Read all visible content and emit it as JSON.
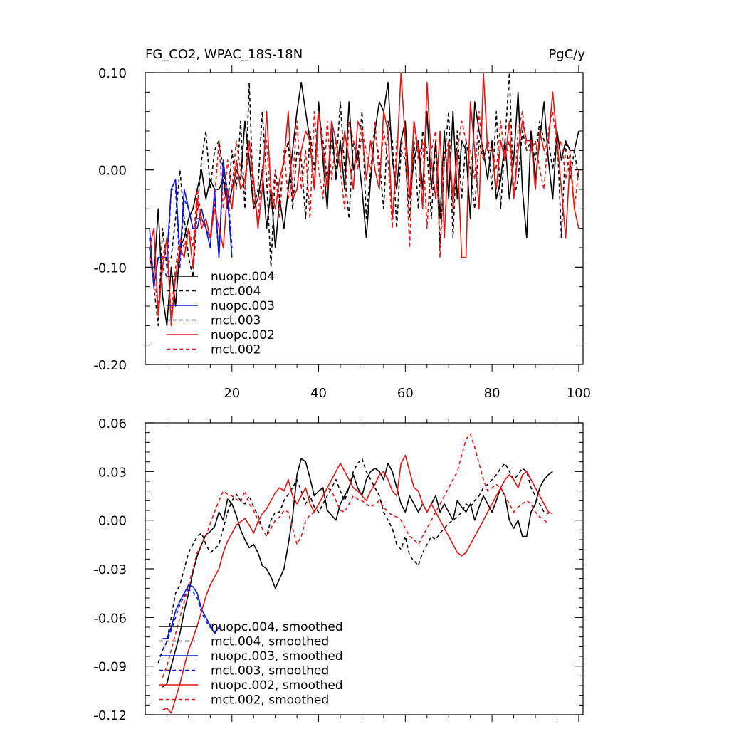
{
  "chart_data": [
    {
      "type": "line",
      "title": "FG_CO2, WPAC_18S-18N",
      "units": "PgC/y",
      "xlabel": "",
      "ylabel": "",
      "xlim": [
        0,
        101
      ],
      "ylim": [
        -0.2,
        0.1
      ],
      "xticks": [
        20,
        40,
        60,
        80,
        100
      ],
      "xtick_labels": [
        "20",
        "40",
        "60",
        "80",
        "100"
      ],
      "yticks": [
        0.1,
        0.0,
        -0.1,
        -0.2
      ],
      "ytick_labels": [
        "0.10",
        "0.00",
        "-0.10",
        "-0.20"
      ],
      "legend_position": "bottom-left",
      "series": [
        {
          "name": "nuopc.004",
          "color": "#000000",
          "dash": "solid",
          "x_start": 1,
          "values": [
            -0.09,
            -0.11,
            -0.04,
            -0.13,
            -0.16,
            -0.1,
            -0.14,
            -0.08,
            -0.07,
            -0.05,
            -0.04,
            -0.02,
            0.0,
            -0.03,
            -0.01,
            -0.02,
            -0.02,
            -0.01,
            -0.04,
            -0.02,
            0.0,
            -0.01,
            0.05,
            0.01,
            -0.04,
            -0.03,
            0.0,
            -0.06,
            -0.02,
            -0.08,
            -0.03,
            -0.06,
            -0.02,
            0.02,
            0.06,
            0.09,
            0.06,
            0.03,
            -0.02,
            0.07,
            0.01,
            -0.04,
            0.05,
            -0.01,
            0.03,
            -0.02,
            0.07,
            0.0,
            0.02,
            -0.02,
            -0.07,
            -0.01,
            0.04,
            0.07,
            0.06,
            0.09,
            0.01,
            -0.02,
            0.03,
            0.05,
            -0.03,
            0.01,
            0.03,
            -0.02,
            0.06,
            -0.02,
            0.03,
            -0.05,
            0.04,
            -0.03,
            0.06,
            -0.03,
            0.03,
            0.02,
            -0.05,
            0.07,
            0.04,
            0.02,
            -0.01,
            0.03,
            -0.03,
            -0.01,
            0.03,
            -0.03,
            0.01,
            0.08,
            -0.02,
            -0.07,
            0.04,
            -0.01,
            0.03,
            0.07,
            0.01,
            -0.03,
            0.04,
            0.01,
            0.03,
            0.02,
            0.02,
            0.04
          ]
        },
        {
          "name": "mct.004",
          "color": "#000000",
          "dash": "dashed",
          "x_start": 1,
          "values": [
            -0.08,
            -0.12,
            -0.16,
            -0.06,
            -0.1,
            -0.09,
            -0.05,
            0.0,
            -0.05,
            -0.09,
            -0.11,
            -0.04,
            0.01,
            0.04,
            -0.02,
            0.02,
            0.03,
            0.0,
            -0.04,
            0.02,
            -0.02,
            0.05,
            -0.04,
            0.09,
            -0.04,
            -0.02,
            0.06,
            -0.01,
            -0.1,
            0.0,
            -0.03,
            0.01,
            0.03,
            -0.04,
            0.02,
            0.01,
            -0.05,
            0.04,
            0.0,
            0.06,
            0.03,
            -0.01,
            0.03,
            0.0,
            0.07,
            0.0,
            -0.05,
            0.03,
            0.01,
            0.06,
            -0.05,
            0.0,
            0.04,
            0.01,
            -0.04,
            0.05,
            0.03,
            -0.06,
            0.02,
            0.01,
            -0.05,
            0.03,
            -0.04,
            0.04,
            0.02,
            -0.05,
            0.03,
            -0.08,
            0.01,
            0.06,
            -0.07,
            0.04,
            -0.03,
            0.03,
            0.0,
            -0.04,
            0.03,
            0.01,
            0.03,
            -0.02,
            0.06,
            -0.04,
            0.03,
            0.1,
            -0.03,
            -0.01,
            0.04,
            0.02,
            0.03,
            0.01,
            0.05,
            0.03,
            0.03,
            0.0,
            0.04,
            -0.07,
            0.03,
            -0.01,
            0.02,
            -0.01
          ]
        },
        {
          "name": "nuopc.003",
          "color": "#0a14dc",
          "dash": "solid",
          "x_start": 1,
          "values": [
            -0.06,
            -0.12,
            -0.09,
            -0.09,
            -0.09,
            -0.02,
            -0.01,
            -0.09,
            -0.02,
            -0.04,
            -0.06,
            -0.06,
            -0.04,
            -0.06,
            -0.08,
            -0.02,
            -0.09,
            0.01,
            -0.03,
            -0.09
          ]
        },
        {
          "name": "mct.003",
          "color": "#0a14dc",
          "dash": "dashed",
          "x_start": 1,
          "values": [
            -0.07,
            -0.12,
            -0.09,
            -0.1,
            -0.11,
            -0.02,
            -0.02,
            -0.1,
            -0.03,
            -0.04,
            -0.06,
            -0.05,
            -0.05,
            -0.06,
            -0.07,
            -0.03,
            -0.09,
            0.0,
            -0.02,
            -0.08
          ]
        },
        {
          "name": "nuopc.002",
          "color": "#e61414",
          "dash": "solid",
          "x_start": 1,
          "values": [
            -0.08,
            -0.06,
            -0.15,
            -0.1,
            -0.07,
            -0.16,
            -0.11,
            -0.08,
            -0.09,
            -0.06,
            -0.1,
            -0.03,
            -0.06,
            -0.05,
            -0.07,
            -0.04,
            -0.06,
            -0.08,
            -0.02,
            -0.04,
            0.01,
            -0.02,
            -0.01,
            0.03,
            -0.01,
            -0.06,
            -0.02,
            0.06,
            -0.02,
            -0.04,
            -0.01,
            0.01,
            0.06,
            -0.03,
            -0.02,
            0.02,
            0.04,
            0.03,
            -0.02,
            0.06,
            0.02,
            -0.02,
            0.05,
            0.03,
            0.0,
            0.04,
            0.01,
            -0.02,
            0.05,
            0.04,
            -0.01,
            0.03,
            0.0,
            -0.02,
            0.06,
            0.04,
            -0.05,
            0.01,
            0.1,
            0.03,
            -0.03,
            0.05,
            0.02,
            -0.04,
            0.09,
            0.01,
            -0.03,
            0.04,
            -0.07,
            0.03,
            -0.03,
            0.02,
            -0.09,
            -0.09,
            0.07,
            0.02,
            -0.04,
            0.1,
            0.02,
            0.02,
            -0.02,
            0.03,
            0.01,
            0.05,
            -0.03,
            0.02,
            0.05,
            0.03,
            0.03,
            -0.02,
            0.04,
            0.02,
            0.03,
            0.08,
            0.03,
            -0.02,
            -0.07,
            0.01,
            -0.04,
            -0.06
          ]
        },
        {
          "name": "mct.002",
          "color": "#e61414",
          "dash": "dashed",
          "x_start": 1,
          "values": [
            -0.09,
            -0.11,
            -0.14,
            -0.09,
            -0.07,
            -0.15,
            -0.1,
            -0.07,
            -0.08,
            -0.06,
            -0.08,
            -0.02,
            -0.05,
            -0.06,
            -0.07,
            -0.03,
            0.03,
            -0.04,
            0.01,
            -0.02,
            0.03,
            0.0,
            -0.02,
            0.03,
            -0.03,
            -0.05,
            0.0,
            0.03,
            -0.04,
            0.0,
            -0.05,
            0.02,
            -0.03,
            -0.01,
            0.05,
            -0.02,
            0.02,
            -0.05,
            0.06,
            0.0,
            -0.03,
            0.05,
            -0.01,
            0.03,
            0.0,
            -0.04,
            0.05,
            0.03,
            0.0,
            0.04,
            0.02,
            0.0,
            0.05,
            -0.01,
            0.04,
            0.01,
            -0.06,
            0.03,
            0.03,
            0.02,
            -0.08,
            0.05,
            0.01,
            0.03,
            -0.06,
            0.02,
            0.04,
            -0.09,
            0.01,
            0.03,
            -0.04,
            0.02,
            0.05,
            0.03,
            0.02,
            -0.01,
            0.06,
            0.01,
            0.03,
            0.02,
            0.0,
            0.05,
            0.01,
            0.03,
            -0.03,
            0.04,
            0.06,
            0.02,
            0.02,
            0.03,
            0.0,
            -0.02,
            0.04,
            0.06,
            0.02,
            0.03,
            -0.01,
            0.02,
            -0.04,
            0.0
          ]
        }
      ]
    },
    {
      "type": "line",
      "title": "",
      "xlabel": "",
      "ylabel": "",
      "xlim": [
        0,
        101
      ],
      "ylim": [
        -0.12,
        0.06
      ],
      "xticks": [
        20,
        40,
        60,
        80,
        100
      ],
      "yticks": [
        0.06,
        0.03,
        0.0,
        -0.03,
        -0.06,
        -0.09,
        -0.12
      ],
      "ytick_labels": [
        "0.06",
        "0.03",
        "0.00",
        "-0.03",
        "-0.06",
        "-0.09",
        "-0.12"
      ],
      "legend_position": "bottom-left",
      "series": [
        {
          "name": "nuopc.004, smoothed",
          "color": "#000000",
          "dash": "solid",
          "x_start": 4,
          "values": [
            -0.103,
            -0.101,
            -0.09,
            -0.08,
            -0.07,
            -0.056,
            -0.045,
            -0.032,
            -0.022,
            -0.015,
            -0.009,
            -0.007,
            -0.004,
            0.005,
            0.0,
            0.013,
            0.01,
            0.003,
            -0.006,
            -0.012,
            -0.017,
            -0.015,
            -0.02,
            -0.028,
            -0.03,
            -0.035,
            -0.042,
            -0.036,
            -0.03,
            -0.015,
            0.002,
            0.028,
            0.038,
            0.036,
            0.026,
            0.015,
            0.018,
            0.02,
            0.006,
            0.003,
            0.0,
            0.01,
            0.015,
            0.02,
            0.028,
            0.02,
            0.015,
            0.025,
            0.03,
            0.032,
            0.03,
            0.025,
            0.035,
            0.03,
            0.02,
            0.01,
            0.005,
            0.015,
            0.01,
            0.005,
            0.01,
            0.005,
            0.01,
            0.015,
            0.005,
            0.01,
            0.005,
            0.0,
            0.012,
            0.008,
            0.005,
            0.01,
            0.0,
            0.008,
            0.015,
            0.01,
            0.005,
            0.012,
            0.02,
            0.015,
            0.0,
            -0.005,
            0.0,
            -0.01,
            -0.01,
            0.005,
            0.01,
            0.02,
            0.025,
            0.028,
            0.03
          ]
        },
        {
          "name": "mct.004, smoothed",
          "color": "#000000",
          "dash": "dashed",
          "x_start": 3,
          "values": [
            -0.088,
            -0.08,
            -0.075,
            -0.06,
            -0.045,
            -0.04,
            -0.03,
            -0.02,
            -0.015,
            -0.01,
            -0.008,
            -0.015,
            -0.02,
            -0.018,
            -0.015,
            -0.005,
            0.005,
            0.012,
            0.016,
            0.012,
            0.01,
            0.015,
            0.008,
            0.003,
            -0.005,
            -0.01,
            0.0,
            0.005,
            0.005,
            0.012,
            0.016,
            0.02,
            0.025,
            0.018,
            0.01,
            0.015,
            0.008,
            0.005,
            0.01,
            0.015,
            0.02,
            0.025,
            0.018,
            0.012,
            0.02,
            0.03,
            0.035,
            0.038,
            0.03,
            0.025,
            0.02,
            0.015,
            0.005,
            0.0,
            -0.005,
            -0.015,
            -0.018,
            -0.01,
            -0.022,
            -0.025,
            -0.028,
            -0.02,
            -0.015,
            -0.01,
            -0.012,
            -0.008,
            -0.005,
            -0.002,
            0.0,
            0.002,
            0.005,
            0.01,
            0.008,
            0.012,
            0.015,
            0.02,
            0.022,
            0.025,
            0.028,
            0.032,
            0.035,
            0.03,
            0.025,
            0.028,
            0.032,
            0.03,
            0.02,
            0.015,
            0.01,
            0.005,
            0.004
          ]
        },
        {
          "name": "nuopc.003, smoothed",
          "color": "#0a14dc",
          "dash": "solid",
          "x_start": 4,
          "values": [
            -0.073,
            -0.073,
            -0.066,
            -0.056,
            -0.05,
            -0.045,
            -0.04,
            -0.041,
            -0.045,
            -0.055,
            -0.06,
            -0.065,
            -0.07,
            -0.066
          ]
        },
        {
          "name": "mct.003, smoothed",
          "color": "#0a14dc",
          "dash": "dashed",
          "x_start": 4,
          "values": [
            -0.08,
            -0.075,
            -0.068,
            -0.06,
            -0.052,
            -0.047,
            -0.043,
            -0.044,
            -0.048,
            -0.057,
            -0.062,
            -0.066,
            -0.069,
            -0.066
          ]
        },
        {
          "name": "nuopc.002, smoothed",
          "color": "#e61414",
          "dash": "solid",
          "x_start": 4,
          "values": [
            -0.117,
            -0.116,
            -0.119,
            -0.11,
            -0.101,
            -0.09,
            -0.08,
            -0.073,
            -0.065,
            -0.056,
            -0.047,
            -0.04,
            -0.035,
            -0.03,
            -0.02,
            -0.013,
            -0.008,
            -0.003,
            -0.001,
            0.001,
            -0.003,
            -0.008,
            -0.001,
            0.004,
            0.007,
            0.012,
            0.017,
            0.02,
            0.018,
            0.025,
            0.015,
            0.01,
            0.015,
            0.02,
            0.01,
            0.005,
            0.01,
            0.015,
            0.02,
            0.025,
            0.03,
            0.035,
            0.03,
            0.025,
            0.02,
            0.018,
            0.015,
            0.012,
            0.018,
            0.022,
            0.028,
            0.03,
            0.025,
            0.018,
            0.015,
            0.035,
            0.04,
            0.03,
            0.02,
            0.018,
            0.01,
            0.005,
            0.01,
            0.005,
            0.0,
            -0.005,
            -0.01,
            -0.015,
            -0.02,
            -0.022,
            -0.02,
            -0.015,
            -0.01,
            -0.005,
            0.0,
            0.005,
            0.01,
            0.015,
            0.02,
            0.025,
            0.028,
            0.025,
            0.02,
            0.028,
            0.03,
            0.025,
            0.02,
            0.015,
            0.01,
            0.005,
            0.004
          ]
        },
        {
          "name": "mct.002, smoothed",
          "color": "#e61414",
          "dash": "dashed",
          "x_start": 4,
          "values": [
            -0.097,
            -0.09,
            -0.08,
            -0.07,
            -0.06,
            -0.05,
            -0.04,
            -0.03,
            -0.02,
            -0.015,
            -0.01,
            -0.002,
            0.005,
            0.012,
            0.018,
            0.016,
            0.015,
            0.013,
            0.011,
            0.018,
            0.01,
            0.006,
            0.0,
            -0.005,
            -0.01,
            -0.005,
            0.0,
            0.002,
            0.006,
            0.005,
            -0.005,
            -0.015,
            -0.01,
            0.0,
            0.003,
            0.005,
            0.01,
            0.015,
            0.02,
            0.018,
            0.012,
            0.006,
            0.005,
            0.01,
            0.015,
            0.013,
            0.012,
            0.01,
            0.008,
            0.01,
            0.012,
            0.008,
            0.005,
            0.003,
            0.002,
            0.0,
            -0.005,
            -0.01,
            -0.012,
            -0.015,
            -0.01,
            -0.005,
            0.0,
            0.005,
            0.01,
            0.015,
            0.02,
            0.025,
            0.03,
            0.04,
            0.05,
            0.053,
            0.045,
            0.035,
            0.025,
            0.018,
            0.02,
            0.022,
            0.02,
            0.015,
            0.01,
            0.005,
            0.008,
            0.01,
            0.012,
            0.01,
            0.005,
            0.002,
            0.0,
            -0.002
          ]
        }
      ]
    }
  ]
}
